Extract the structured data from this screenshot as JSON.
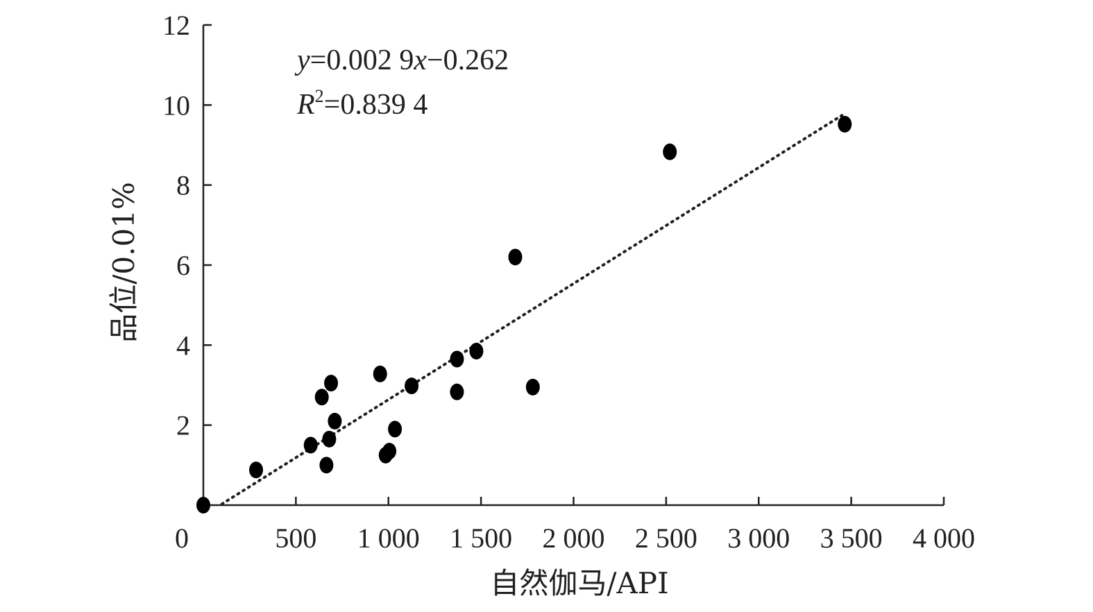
{
  "chart_data": {
    "type": "scatter",
    "xlabel": "自然伽马/API",
    "ylabel": "品位/0.01%",
    "xlim": [
      0,
      4000
    ],
    "ylim": [
      0,
      12
    ],
    "x_ticks": [
      500,
      1000,
      1500,
      2000,
      2500,
      3000,
      3500,
      4000
    ],
    "x_tick_labels": [
      "500",
      "1 000",
      "1 500",
      "2 000",
      "2 500",
      "3 000",
      "3 500",
      "4 000"
    ],
    "y_ticks": [
      2,
      4,
      6,
      8,
      10,
      12
    ],
    "y_tick_labels": [
      "2",
      "4",
      "6",
      "8",
      "10",
      "12"
    ],
    "origin_label": "0",
    "grid": false,
    "legend": "none",
    "series": [
      {
        "x": [
          0,
          285,
          580,
          640,
          665,
          680,
          690,
          710,
          955,
          985,
          1005,
          1035,
          1125,
          1370,
          1370,
          1475,
          1685,
          1780,
          2520,
          3465
        ],
        "y": [
          0,
          0.88,
          1.5,
          2.7,
          1.0,
          1.65,
          3.05,
          2.1,
          3.28,
          1.25,
          1.35,
          1.9,
          2.98,
          3.65,
          2.83,
          3.85,
          6.2,
          2.95,
          8.83,
          9.52
        ]
      }
    ],
    "trendline": {
      "type": "linear",
      "slope": 0.0029,
      "intercept": -0.262,
      "x_range": [
        100,
        3450
      ],
      "equation": {
        "y_var": "y",
        "eq_mid": "=0.002 9",
        "x_var": "x",
        "eq_end": "−0.262"
      },
      "r2": {
        "r_var": "R",
        "sup": "2",
        "value": "=0.839 4"
      }
    },
    "marker_color": "#000000"
  }
}
